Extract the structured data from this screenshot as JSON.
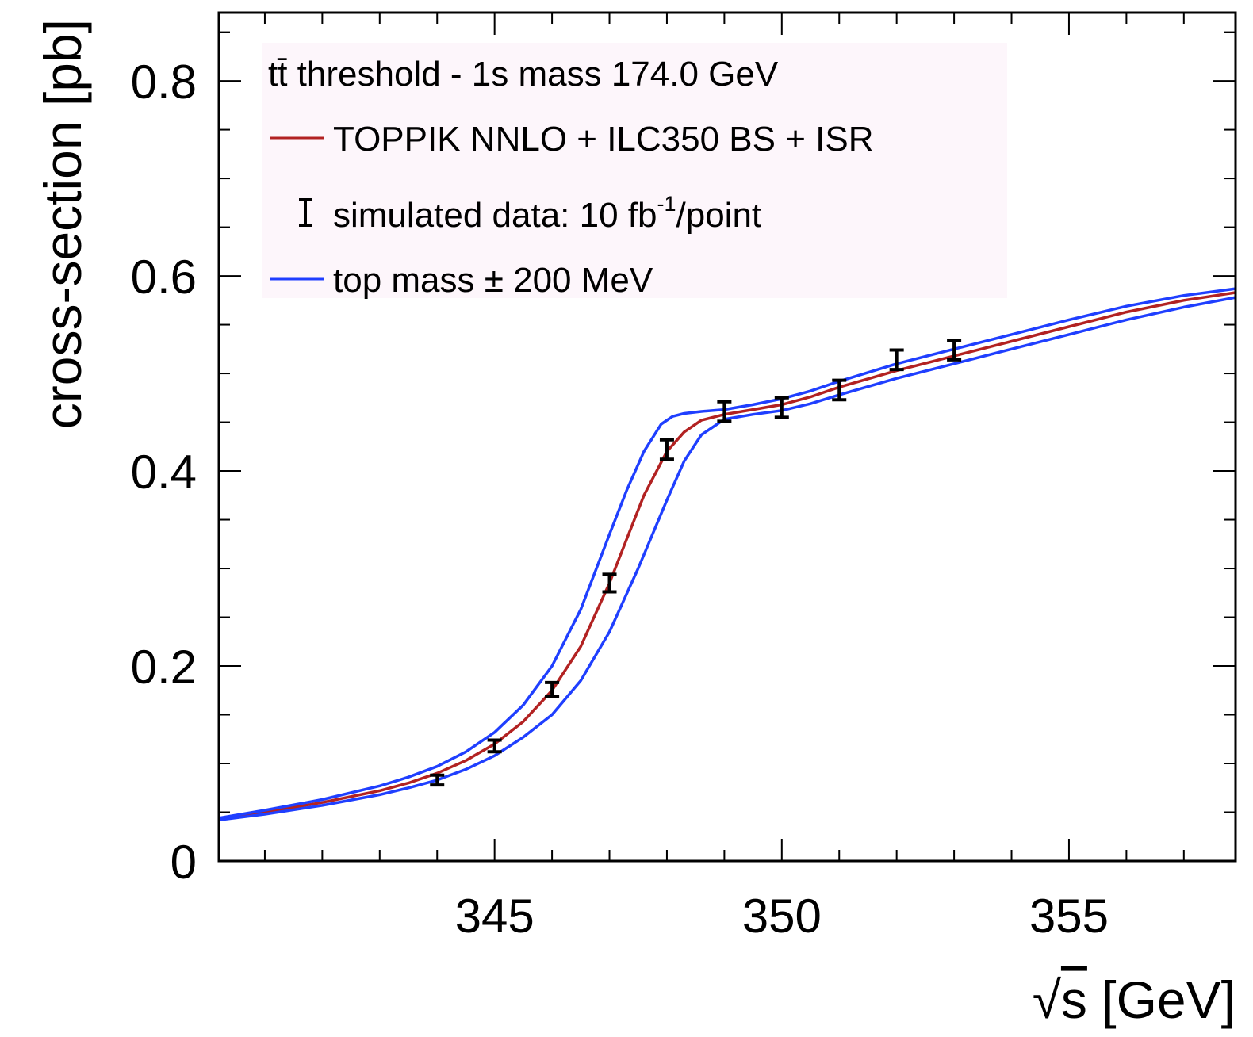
{
  "chart_data": {
    "type": "line",
    "title": "",
    "xlabel": "√s [GeV]",
    "xlabel_parts": {
      "radical": "√",
      "var": "s",
      "unit": " [GeV]"
    },
    "ylabel": "cross-section [pb]",
    "xlim": [
      340.2,
      357.9
    ],
    "ylim": [
      0,
      0.87
    ],
    "x_ticks": [
      345,
      350,
      355
    ],
    "y_ticks": [
      0,
      0.2,
      0.4,
      0.6,
      0.8
    ],
    "x_tick_labels": [
      "345",
      "350",
      "355"
    ],
    "y_tick_labels": [
      "0",
      "0.2",
      "0.4",
      "0.6",
      "0.8"
    ],
    "grid": false,
    "legend_position": "top-left",
    "legend": {
      "header": "tt̄ threshold - 1s mass 174.0 GeV",
      "entries": [
        {
          "label": "TOPPIK NNLO + ILC350 BS + ISR",
          "marker": "line",
          "color": "#b22222"
        },
        {
          "label": "simulated data: 10 fb",
          "label_sup": "-1",
          "label_suffix": "/point",
          "marker": "errorbar",
          "color": "#000000"
        },
        {
          "label": "top mass ± 200 MeV",
          "marker": "line",
          "color": "#1f3fff"
        }
      ]
    },
    "series": [
      {
        "name": "TOPPIK NNLO + ILC350 BS + ISR",
        "color": "#b22222",
        "style": "line",
        "x": [
          340.2,
          341,
          342,
          343,
          343.5,
          344,
          344.5,
          345,
          345.5,
          346,
          346.5,
          347,
          347.3,
          347.6,
          348,
          348.3,
          348.6,
          349,
          349.5,
          350,
          350.5,
          351,
          352,
          353,
          354,
          355,
          356,
          357,
          357.9
        ],
        "y": [
          0.043,
          0.05,
          0.06,
          0.072,
          0.08,
          0.09,
          0.103,
          0.12,
          0.143,
          0.175,
          0.22,
          0.285,
          0.33,
          0.375,
          0.42,
          0.44,
          0.452,
          0.458,
          0.463,
          0.468,
          0.476,
          0.486,
          0.503,
          0.518,
          0.533,
          0.548,
          0.563,
          0.575,
          0.583
        ]
      },
      {
        "name": "top mass ± 200 MeV",
        "color": "#1f3fff",
        "style": "line",
        "x": [
          340.2,
          341,
          342,
          343,
          343.5,
          344,
          344.5,
          345,
          345.5,
          346,
          346.5,
          347,
          347.3,
          347.6,
          347.9,
          348.1,
          348.3,
          348.6,
          349,
          349.5,
          350,
          350.5,
          351,
          352,
          353,
          354,
          355,
          356,
          357,
          357.9
        ],
        "y": [
          0.044,
          0.052,
          0.063,
          0.077,
          0.086,
          0.097,
          0.112,
          0.132,
          0.16,
          0.2,
          0.258,
          0.335,
          0.38,
          0.42,
          0.448,
          0.456,
          0.459,
          0.461,
          0.463,
          0.468,
          0.474,
          0.482,
          0.492,
          0.51,
          0.525,
          0.54,
          0.555,
          0.569,
          0.58,
          0.587
        ]
      },
      {
        "name": "top mass ± 200 MeV",
        "color": "#1f3fff",
        "style": "line",
        "x": [
          340.2,
          341,
          342,
          343,
          343.5,
          344,
          344.5,
          345,
          345.5,
          346,
          346.5,
          347,
          347.5,
          348,
          348.3,
          348.6,
          349,
          349.5,
          350,
          350.5,
          351,
          352,
          353,
          354,
          355,
          356,
          357,
          357.9
        ],
        "y": [
          0.042,
          0.048,
          0.057,
          0.068,
          0.075,
          0.083,
          0.094,
          0.108,
          0.127,
          0.15,
          0.185,
          0.235,
          0.3,
          0.37,
          0.41,
          0.437,
          0.453,
          0.458,
          0.462,
          0.469,
          0.478,
          0.495,
          0.51,
          0.525,
          0.54,
          0.555,
          0.568,
          0.578
        ]
      },
      {
        "name": "simulated data: 10 fb-1/point",
        "color": "#000000",
        "style": "errorbar",
        "x": [
          344,
          345,
          346,
          347,
          348,
          349,
          350,
          351,
          352,
          353
        ],
        "y": [
          0.083,
          0.118,
          0.176,
          0.285,
          0.422,
          0.461,
          0.465,
          0.483,
          0.514,
          0.524
        ],
        "yerr": [
          0.005,
          0.006,
          0.007,
          0.009,
          0.01,
          0.01,
          0.01,
          0.01,
          0.01,
          0.01
        ]
      }
    ]
  }
}
